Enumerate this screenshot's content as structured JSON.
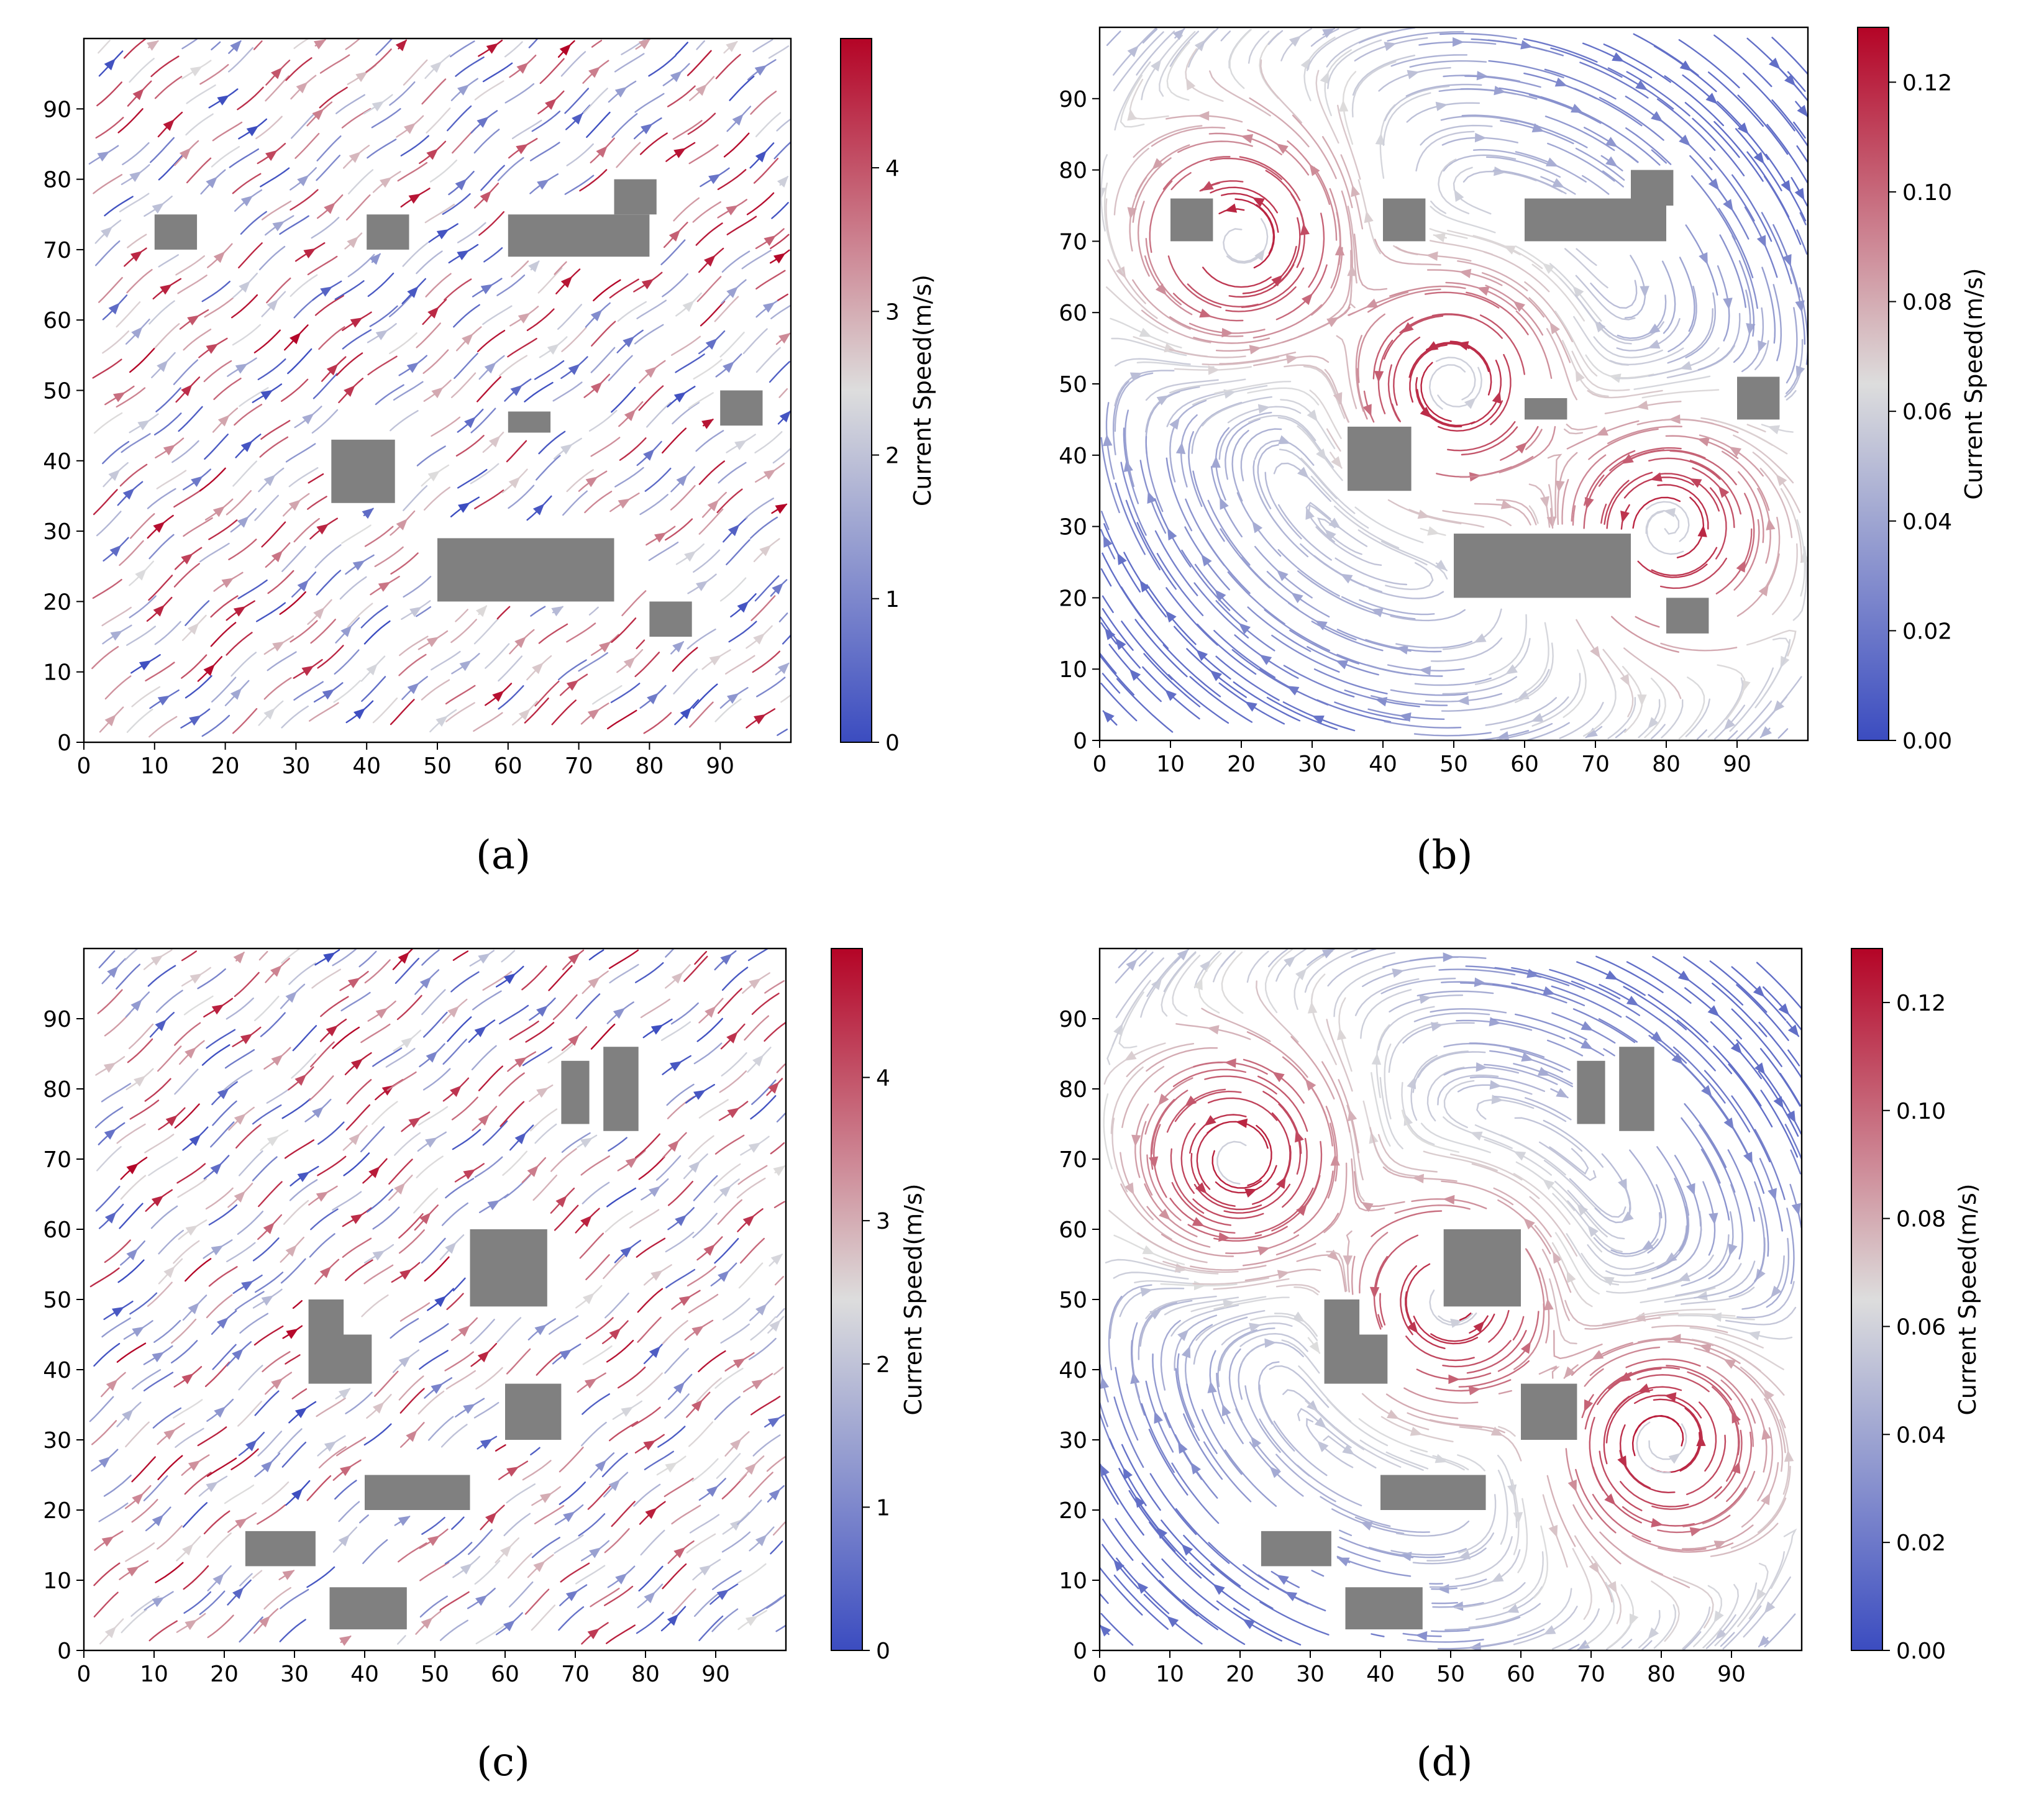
{
  "colorscale": {
    "low": "#3b4cc0",
    "mid": "#dddddd",
    "high": "#b40426"
  },
  "obstacle_color": "#808080",
  "chart_data": [
    {
      "type": "streamplot",
      "caption": "(a)",
      "xlim": [
        0,
        100
      ],
      "ylim": [
        0,
        100
      ],
      "xticks": [
        "0",
        "10",
        "20",
        "30",
        "40",
        "50",
        "60",
        "70",
        "80",
        "90"
      ],
      "yticks": [
        "0",
        "10",
        "20",
        "30",
        "40",
        "50",
        "60",
        "70",
        "80",
        "90"
      ],
      "flow": "uniform",
      "colorbar": {
        "label": "Current Speed(m/s)",
        "min": 0,
        "max": 4.9,
        "ticks": [
          "0",
          "1",
          "2",
          "3",
          "4"
        ]
      },
      "obstacles": [
        {
          "x0": 10,
          "x1": 16,
          "y0": 70,
          "y1": 75
        },
        {
          "x0": 40,
          "x1": 46,
          "y0": 70,
          "y1": 75
        },
        {
          "x0": 60,
          "x1": 80,
          "y0": 69,
          "y1": 75
        },
        {
          "x0": 75,
          "x1": 81,
          "y0": 75,
          "y1": 80
        },
        {
          "x0": 35,
          "x1": 44,
          "y0": 34,
          "y1": 43
        },
        {
          "x0": 60,
          "x1": 66,
          "y0": 44,
          "y1": 47
        },
        {
          "x0": 90,
          "x1": 96,
          "y0": 45,
          "y1": 50
        },
        {
          "x0": 50,
          "x1": 75,
          "y0": 20,
          "y1": 29
        },
        {
          "x0": 80,
          "x1": 86,
          "y0": 15,
          "y1": 20
        }
      ]
    },
    {
      "type": "streamplot",
      "caption": "(b)",
      "xlim": [
        0,
        100
      ],
      "ylim": [
        0,
        100
      ],
      "xticks": [
        "0",
        "10",
        "20",
        "30",
        "40",
        "50",
        "60",
        "70",
        "80",
        "90"
      ],
      "yticks": [
        "0",
        "10",
        "20",
        "30",
        "40",
        "50",
        "60",
        "70",
        "80",
        "90"
      ],
      "flow": "vortex",
      "vortices": [
        {
          "x": 20,
          "y": 70
        },
        {
          "x": 50,
          "y": 50
        },
        {
          "x": 80,
          "y": 30
        }
      ],
      "colorbar": {
        "label": "Current Speed(m/s)",
        "min": 0,
        "max": 0.13,
        "ticks": [
          "0.00",
          "0.02",
          "0.04",
          "0.06",
          "0.08",
          "0.10",
          "0.12"
        ]
      },
      "obstacles": [
        {
          "x0": 10,
          "x1": 16,
          "y0": 70,
          "y1": 76
        },
        {
          "x0": 40,
          "x1": 46,
          "y0": 70,
          "y1": 76
        },
        {
          "x0": 60,
          "x1": 80,
          "y0": 70,
          "y1": 76
        },
        {
          "x0": 75,
          "x1": 81,
          "y0": 75,
          "y1": 80
        },
        {
          "x0": 35,
          "x1": 44,
          "y0": 35,
          "y1": 44
        },
        {
          "x0": 60,
          "x1": 66,
          "y0": 45,
          "y1": 48
        },
        {
          "x0": 90,
          "x1": 96,
          "y0": 45,
          "y1": 51
        },
        {
          "x0": 50,
          "x1": 75,
          "y0": 20,
          "y1": 29
        },
        {
          "x0": 80,
          "x1": 86,
          "y0": 15,
          "y1": 20
        }
      ]
    },
    {
      "type": "streamplot",
      "caption": "(c)",
      "xlim": [
        0,
        100
      ],
      "ylim": [
        0,
        100
      ],
      "xticks": [
        "0",
        "10",
        "20",
        "30",
        "40",
        "50",
        "60",
        "70",
        "80",
        "90"
      ],
      "yticks": [
        "0",
        "10",
        "20",
        "30",
        "40",
        "50",
        "60",
        "70",
        "80",
        "90"
      ],
      "flow": "uniform",
      "colorbar": {
        "label": "Current Speed(m/s)",
        "min": 0,
        "max": 4.9,
        "ticks": [
          "0",
          "1",
          "2",
          "3",
          "4"
        ]
      },
      "obstacles": [
        {
          "x0": 68,
          "x1": 72,
          "y0": 75,
          "y1": 84
        },
        {
          "x0": 74,
          "x1": 79,
          "y0": 74,
          "y1": 86
        },
        {
          "x0": 55,
          "x1": 66,
          "y0": 49,
          "y1": 60
        },
        {
          "x0": 32,
          "x1": 37,
          "y0": 45,
          "y1": 50
        },
        {
          "x0": 32,
          "x1": 41,
          "y0": 38,
          "y1": 45
        },
        {
          "x0": 60,
          "x1": 68,
          "y0": 30,
          "y1": 38
        },
        {
          "x0": 40,
          "x1": 55,
          "y0": 20,
          "y1": 25
        },
        {
          "x0": 23,
          "x1": 33,
          "y0": 12,
          "y1": 17
        },
        {
          "x0": 35,
          "x1": 46,
          "y0": 3,
          "y1": 9
        }
      ]
    },
    {
      "type": "streamplot",
      "caption": "(d)",
      "xlim": [
        0,
        100
      ],
      "ylim": [
        0,
        100
      ],
      "xticks": [
        "0",
        "10",
        "20",
        "30",
        "40",
        "50",
        "60",
        "70",
        "80",
        "90"
      ],
      "yticks": [
        "0",
        "10",
        "20",
        "30",
        "40",
        "50",
        "60",
        "70",
        "80",
        "90"
      ],
      "flow": "vortex",
      "vortices": [
        {
          "x": 20,
          "y": 70
        },
        {
          "x": 50,
          "y": 50
        },
        {
          "x": 80,
          "y": 30
        }
      ],
      "colorbar": {
        "label": "Current Speed(m/s)",
        "min": 0,
        "max": 0.13,
        "ticks": [
          "0.00",
          "0.02",
          "0.04",
          "0.06",
          "0.08",
          "0.10",
          "0.12"
        ]
      },
      "obstacles": [
        {
          "x0": 68,
          "x1": 72,
          "y0": 75,
          "y1": 84
        },
        {
          "x0": 74,
          "x1": 79,
          "y0": 74,
          "y1": 86
        },
        {
          "x0": 49,
          "x1": 60,
          "y0": 49,
          "y1": 60
        },
        {
          "x0": 32,
          "x1": 37,
          "y0": 45,
          "y1": 50
        },
        {
          "x0": 32,
          "x1": 41,
          "y0": 38,
          "y1": 45
        },
        {
          "x0": 60,
          "x1": 68,
          "y0": 30,
          "y1": 38
        },
        {
          "x0": 40,
          "x1": 55,
          "y0": 20,
          "y1": 25
        },
        {
          "x0": 23,
          "x1": 33,
          "y0": 12,
          "y1": 17
        },
        {
          "x0": 35,
          "x1": 46,
          "y0": 3,
          "y1": 9
        }
      ]
    }
  ]
}
